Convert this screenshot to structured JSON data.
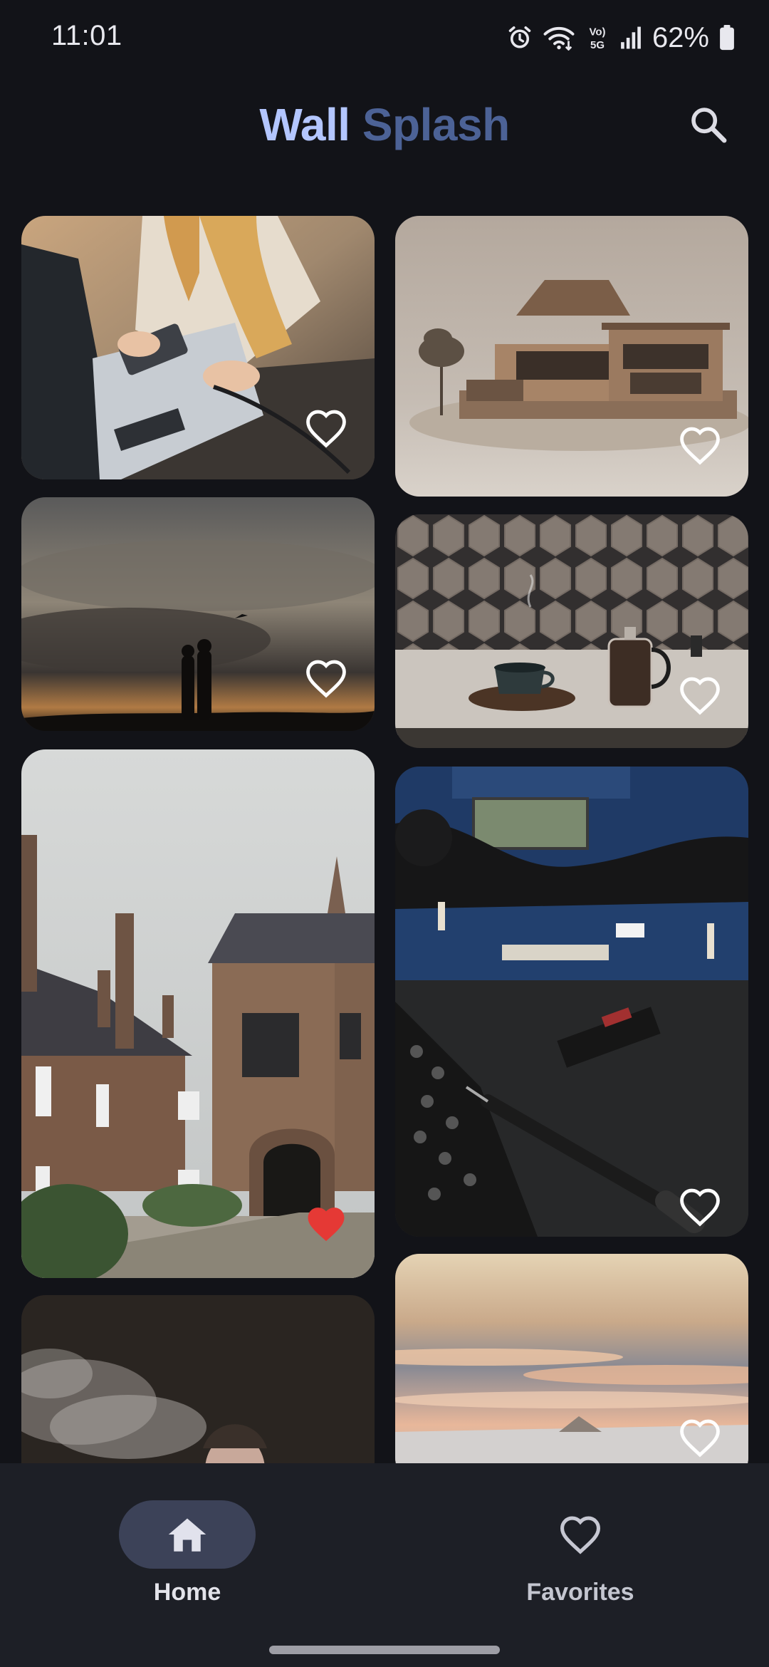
{
  "status_bar": {
    "time": "11:01",
    "battery": "62%",
    "icons": [
      "alarm-icon",
      "wifi-icon",
      "volte-5g-icon",
      "signal-icon",
      "battery-icon"
    ]
  },
  "header": {
    "title_part1": "Wall",
    "title_part2": "Splash",
    "search_icon": "search-icon"
  },
  "photos": [
    {
      "id": "card-1",
      "description": "woman with laptop and external SSD",
      "favorited": false
    },
    {
      "id": "card-2",
      "description": "architectural house model",
      "favorited": false
    },
    {
      "id": "card-3",
      "description": "couple silhouette under stormy sky",
      "favorited": false
    },
    {
      "id": "card-4",
      "description": "coffee cup and french press on table",
      "favorited": false
    },
    {
      "id": "card-5",
      "description": "old stone college building with archway",
      "favorited": true
    },
    {
      "id": "card-6",
      "description": "laptop motherboard with NVMe SSD and screwdriver",
      "favorited": false
    },
    {
      "id": "card-7",
      "description": "person exhaling smoke",
      "favorited": false
    },
    {
      "id": "card-8",
      "description": "sea of clouds at sunrise",
      "favorited": false
    }
  ],
  "bottom_nav": {
    "items": [
      {
        "label": "Home",
        "icon": "home-icon",
        "active": true
      },
      {
        "label": "Favorites",
        "icon": "heart-outline-icon",
        "active": false
      }
    ]
  },
  "colors": {
    "background": "#121318",
    "title_primary": "#b3c6ff",
    "title_secondary": "#4c6296",
    "favorite_active": "#e53935",
    "nav_pill": "#3c4258"
  }
}
